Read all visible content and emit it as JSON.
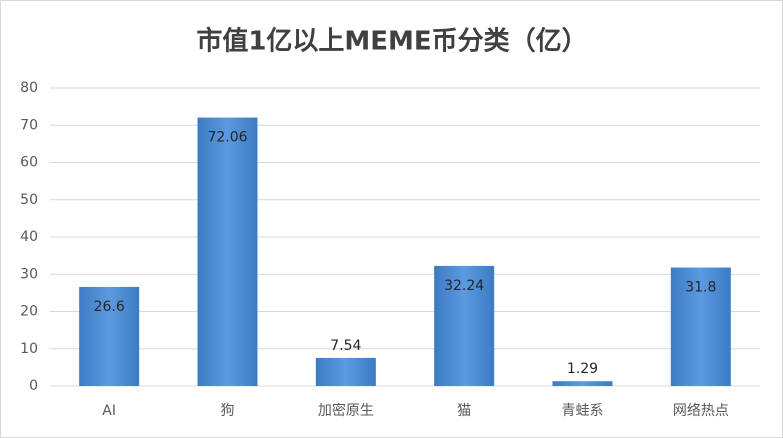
{
  "chart_data": {
    "type": "bar",
    "title": "市值1亿以上MEME币分类（亿）",
    "categories": [
      "AI",
      "狗",
      "加密原生",
      "猫",
      "青蛙系",
      "网络热点"
    ],
    "values": [
      26.6,
      72.06,
      7.54,
      32.24,
      1.29,
      31.8
    ],
    "color": "#4a89cf",
    "ylim": [
      0,
      80
    ],
    "yticks": [
      0,
      10,
      20,
      30,
      40,
      50,
      60,
      70,
      80
    ],
    "grid": true
  }
}
